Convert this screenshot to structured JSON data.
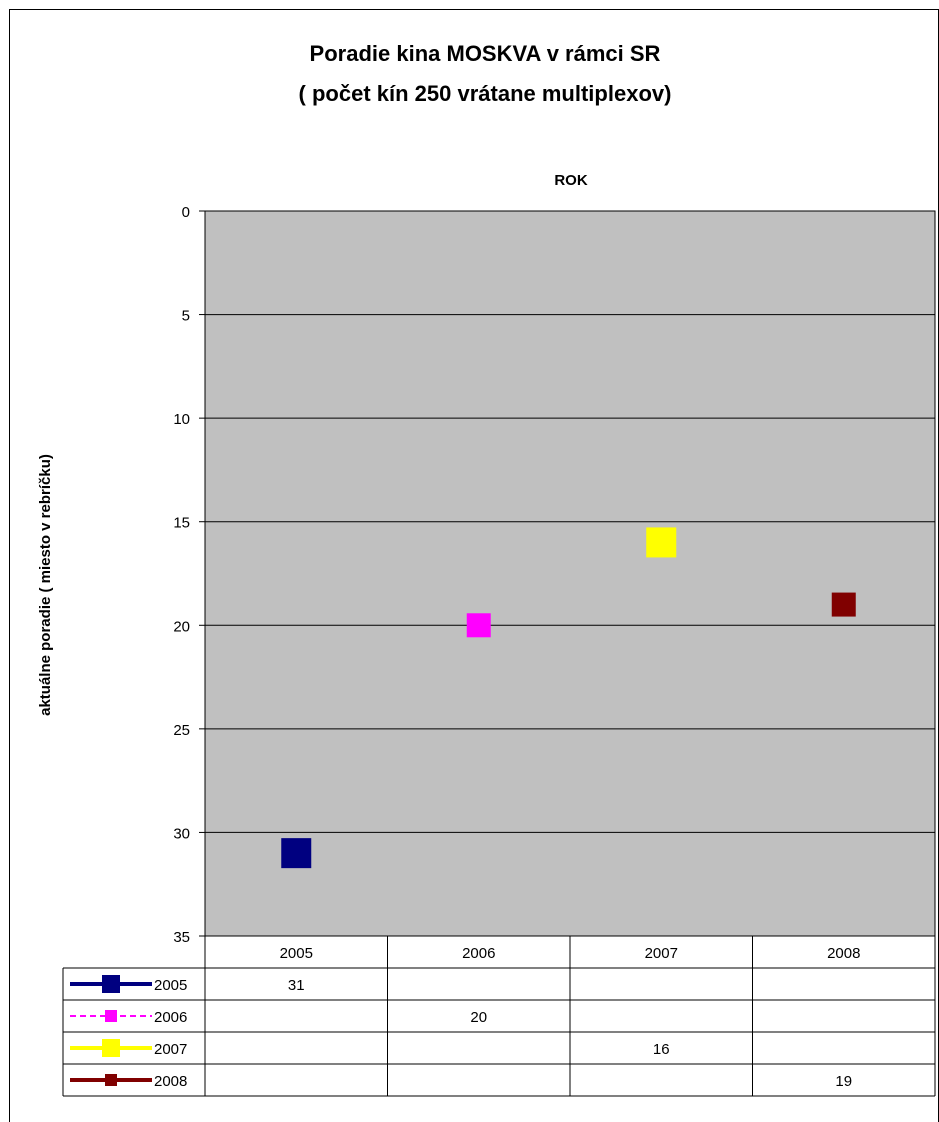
{
  "chart_data": {
    "type": "line",
    "title_line1": "Poradie kina MOSKVA v rámci SR",
    "title_line2": "( počet kín 250 vrátane multiplexov)",
    "xlabel": "ROK",
    "ylabel": "aktuálne poradie ( miesto v rebríčku)",
    "categories": [
      "2005",
      "2006",
      "2007",
      "2008"
    ],
    "ylim": [
      0,
      35
    ],
    "y_reversed": true,
    "y_ticks": [
      "0",
      "5",
      "10",
      "15",
      "20",
      "25",
      "30",
      "35"
    ],
    "grid": true,
    "plot_background": "#c0c0c0",
    "legend_placement": "data-table",
    "series": [
      {
        "name": "2005",
        "color": "#000080",
        "values": [
          31,
          null,
          null,
          null
        ],
        "table": [
          "31",
          "",
          "",
          ""
        ]
      },
      {
        "name": "2006",
        "color": "#ff00ff",
        "values": [
          null,
          20,
          null,
          null
        ],
        "table": [
          "",
          "20",
          "",
          ""
        ]
      },
      {
        "name": "2007",
        "color": "#ffff00",
        "values": [
          null,
          null,
          16,
          null
        ],
        "table": [
          "",
          "",
          "16",
          ""
        ]
      },
      {
        "name": "2008",
        "color": "#800000",
        "values": [
          null,
          null,
          null,
          19
        ],
        "table": [
          "",
          "",
          "",
          "19"
        ]
      }
    ]
  }
}
